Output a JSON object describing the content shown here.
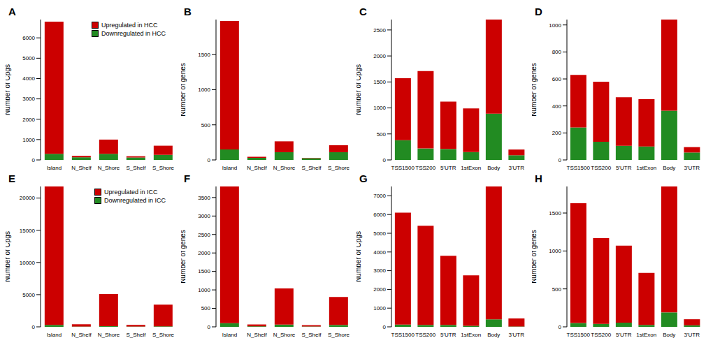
{
  "chart_data": [
    {
      "type": "bar",
      "title": "A",
      "stacked": true,
      "legend": "top right",
      "y_label": "Number of Cpgs",
      "categories": [
        "Island",
        "N_Shelf",
        "N_Shore",
        "S_Shelf",
        "S_Shore"
      ],
      "series": [
        {
          "name": "Upregulated in HCC",
          "color": "#cc0000",
          "values": [
            6500,
            70,
            700,
            60,
            450
          ]
        },
        {
          "name": "Downregulated in HCC",
          "color": "#228b22",
          "values": [
            300,
            130,
            300,
            120,
            250
          ]
        }
      ],
      "ylim": [
        0,
        6900
      ],
      "yticks": [
        0,
        1000,
        2000,
        3000,
        4000,
        5000,
        6000
      ]
    },
    {
      "type": "bar",
      "title": "B",
      "stacked": true,
      "y_label": "Number of genes",
      "categories": [
        "Island",
        "N_Shelf",
        "N_Shore",
        "S_Shelf",
        "S_Shore"
      ],
      "series": [
        {
          "color": "#cc0000",
          "values": [
            1830,
            15,
            155,
            5,
            100
          ]
        },
        {
          "color": "#228b22",
          "values": [
            150,
            30,
            110,
            25,
            110
          ]
        }
      ],
      "ylim": [
        0,
        2000
      ],
      "yticks": [
        0,
        500,
        1000,
        1500
      ]
    },
    {
      "type": "bar",
      "title": "C",
      "stacked": true,
      "y_label": "Number of Cpgs",
      "categories": [
        "TSS1500",
        "TSS200",
        "5'UTR",
        "1stExon",
        "Body",
        "3'UTR"
      ],
      "series": [
        {
          "color": "#cc0000",
          "values": [
            1190,
            1490,
            910,
            840,
            1810,
            110
          ]
        },
        {
          "color": "#228b22",
          "values": [
            380,
            220,
            210,
            150,
            890,
            90
          ]
        }
      ],
      "ylim": [
        0,
        2700
      ],
      "yticks": [
        0,
        500,
        1000,
        1500,
        2000,
        2500
      ]
    },
    {
      "type": "bar",
      "title": "D",
      "stacked": true,
      "y_label": "Number of genes",
      "categories": [
        "TSS1500",
        "TSS200",
        "5'UTR",
        "1stExon",
        "Body",
        "3'UTR"
      ],
      "series": [
        {
          "color": "#cc0000",
          "values": [
            390,
            445,
            360,
            350,
            675,
            40
          ]
        },
        {
          "color": "#228b22",
          "values": [
            240,
            135,
            105,
            100,
            365,
            55
          ]
        }
      ],
      "ylim": [
        0,
        1040
      ],
      "yticks": [
        0,
        200,
        400,
        600,
        800,
        1000
      ]
    },
    {
      "type": "bar",
      "title": "E",
      "stacked": true,
      "legend": "top right",
      "y_label": "Number of Cpgs",
      "categories": [
        "Island",
        "N_Shelf",
        "N_Shore",
        "S_Shelf",
        "S_Shore"
      ],
      "series": [
        {
          "name": "Upregulated in ICC",
          "color": "#cc0000",
          "values": [
            21500,
            350,
            5000,
            250,
            3370
          ]
        },
        {
          "name": "Downregulated in ICC",
          "color": "#228b22",
          "values": [
            300,
            50,
            100,
            50,
            80
          ]
        }
      ],
      "ylim": [
        0,
        21800
      ],
      "yticks": [
        0,
        5000,
        10000,
        15000,
        20000
      ]
    },
    {
      "type": "bar",
      "title": "F",
      "stacked": true,
      "y_label": "Number of genes",
      "categories": [
        "Island",
        "N_Shelf",
        "N_Shore",
        "S_Shelf",
        "S_Shore"
      ],
      "series": [
        {
          "color": "#cc0000",
          "values": [
            3700,
            50,
            980,
            35,
            760
          ]
        },
        {
          "color": "#228b22",
          "values": [
            100,
            15,
            60,
            10,
            50
          ]
        }
      ],
      "ylim": [
        0,
        3800
      ],
      "yticks": [
        0,
        500,
        1000,
        1500,
        2000,
        2500,
        3000,
        3500
      ]
    },
    {
      "type": "bar",
      "title": "G",
      "stacked": true,
      "y_label": "Number of Cpgs",
      "categories": [
        "TSS1500",
        "TSS200",
        "5'UTR",
        "1stExon",
        "Body",
        "3'UTR"
      ],
      "series": [
        {
          "color": "#cc0000",
          "values": [
            5980,
            5300,
            3700,
            2690,
            7100,
            430
          ]
        },
        {
          "color": "#228b22",
          "values": [
            120,
            100,
            100,
            60,
            400,
            20
          ]
        }
      ],
      "ylim": [
        0,
        7500
      ],
      "yticks": [
        0,
        1000,
        2000,
        3000,
        4000,
        5000,
        6000,
        7000
      ]
    },
    {
      "type": "bar",
      "title": "H",
      "stacked": true,
      "y_label": "Number of genes",
      "categories": [
        "TSS1500",
        "TSS200",
        "5'UTR",
        "1stExon",
        "Body",
        "3'UTR"
      ],
      "series": [
        {
          "color": "#cc0000",
          "values": [
            1580,
            1130,
            1015,
            685,
            1660,
            80
          ]
        },
        {
          "color": "#228b22",
          "values": [
            50,
            40,
            55,
            25,
            190,
            20
          ]
        }
      ],
      "ylim": [
        0,
        1850
      ],
      "yticks": [
        0,
        500,
        1000,
        1500
      ]
    }
  ]
}
